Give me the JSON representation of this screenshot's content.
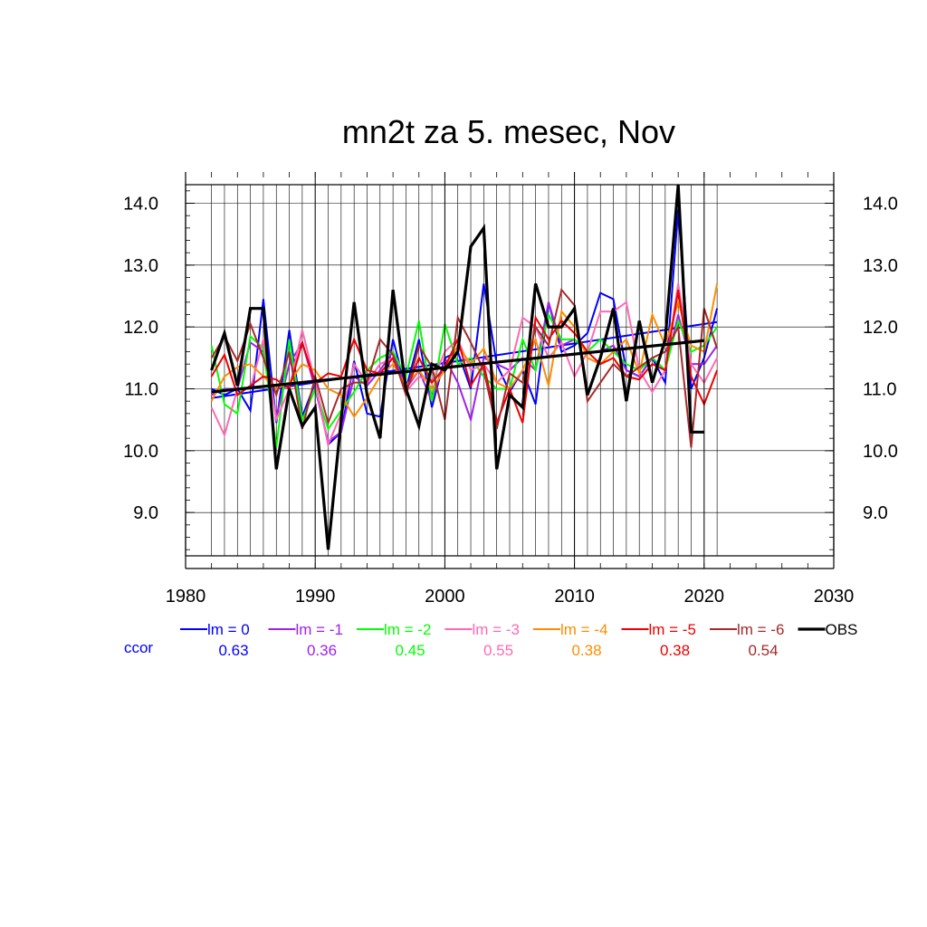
{
  "chart_data": {
    "type": "line",
    "title": "mn2t za 5. mesec, Nov",
    "xlim": [
      1980,
      2030
    ],
    "ylim": [
      8.3,
      14.3
    ],
    "x_ticks": [
      1980,
      1990,
      2000,
      2010,
      2020,
      2030
    ],
    "x_tick_labels": [
      "1980",
      "1990",
      "2000",
      "2010",
      "2020",
      "2030"
    ],
    "y_ticks": [
      9,
      10,
      11,
      12,
      13,
      14
    ],
    "y_tick_labels": [
      "9.0",
      "10.0",
      "11.0",
      "12.0",
      "13.0",
      "14.0"
    ],
    "grid": true,
    "ccor_label": "ccor",
    "x": [
      1982,
      1983,
      1984,
      1985,
      1986,
      1987,
      1988,
      1989,
      1990,
      1991,
      1992,
      1993,
      1994,
      1995,
      1996,
      1997,
      1998,
      1999,
      2000,
      2001,
      2002,
      2003,
      2004,
      2005,
      2006,
      2007,
      2008,
      2009,
      2010,
      2011,
      2012,
      2013,
      2014,
      2015,
      2016,
      2017,
      2018,
      2019,
      2020,
      2021
    ],
    "series": [
      {
        "name": "lm = 0",
        "color": "#0000ff",
        "width": 2,
        "ccor": "0.63",
        "values": [
          11.0,
          10.9,
          11.0,
          10.65,
          12.45,
          10.45,
          11.95,
          10.55,
          11.1,
          10.1,
          10.3,
          11.45,
          10.6,
          10.55,
          11.8,
          11.0,
          11.8,
          10.7,
          11.5,
          11.6,
          11.0,
          12.7,
          11.4,
          10.95,
          11.3,
          10.75,
          12.4,
          11.6,
          11.7,
          11.9,
          12.55,
          12.45,
          11.3,
          11.2,
          11.5,
          11.1,
          13.9,
          11.0,
          11.5,
          12.3
        ],
        "trend": [
          10.85,
          12.08
        ]
      },
      {
        "name": "lm = -1",
        "color": "#a020f0",
        "width": 2,
        "ccor": "0.36",
        "values": [
          10.9,
          11.0,
          11.0,
          11.75,
          11.6,
          10.55,
          11.4,
          11.75,
          11.0,
          10.15,
          10.3,
          11.2,
          11.05,
          11.3,
          11.6,
          11.0,
          11.3,
          10.8,
          11.5,
          11.1,
          10.5,
          11.5,
          11.4,
          11.3,
          11.5,
          11.3,
          12.4,
          11.7,
          11.8,
          11.6,
          11.6,
          11.7,
          11.3,
          11.2,
          11.5,
          11.3,
          12.2,
          11.4,
          11.4,
          11.7
        ]
      },
      {
        "name": "lm = -2",
        "color": "#00ff00",
        "width": 2,
        "ccor": "0.45",
        "values": [
          11.7,
          10.75,
          10.6,
          11.85,
          11.65,
          10.05,
          11.8,
          10.5,
          11.0,
          10.35,
          10.65,
          10.95,
          11.3,
          11.5,
          11.6,
          11.2,
          12.1,
          10.8,
          12.05,
          11.4,
          11.5,
          11.2,
          11.0,
          11.0,
          11.8,
          11.3,
          12.2,
          11.8,
          11.8,
          11.6,
          11.8,
          11.6,
          11.4,
          11.3,
          11.5,
          11.3,
          12.1,
          11.6,
          11.7,
          12.0
        ]
      },
      {
        "name": "lm = -3",
        "color": "#ff69b4",
        "width": 2,
        "ccor": "0.55",
        "values": [
          10.7,
          10.25,
          11.0,
          11.0,
          11.8,
          10.5,
          11.0,
          11.95,
          11.1,
          10.1,
          10.6,
          11.4,
          11.1,
          11.4,
          11.5,
          10.95,
          11.2,
          11.1,
          11.6,
          11.8,
          11.3,
          11.4,
          11.1,
          11.3,
          12.15,
          12.0,
          11.5,
          11.75,
          11.2,
          11.6,
          12.25,
          12.25,
          12.4,
          11.3,
          10.95,
          11.3,
          12.7,
          11.4,
          11.1,
          11.5
        ]
      },
      {
        "name": "lm = -4",
        "color": "#ff8c00",
        "width": 2,
        "ccor": "0.38",
        "values": [
          10.8,
          11.2,
          11.35,
          11.4,
          11.2,
          11.0,
          11.1,
          11.4,
          11.3,
          11.0,
          10.9,
          10.55,
          10.85,
          11.2,
          11.4,
          11.05,
          11.3,
          11.0,
          11.3,
          11.7,
          11.4,
          11.65,
          11.1,
          11.0,
          11.3,
          11.8,
          11.05,
          12.25,
          12.0,
          11.5,
          11.4,
          11.6,
          11.8,
          11.25,
          12.2,
          11.7,
          12.4,
          11.7,
          11.6,
          12.7
        ]
      },
      {
        "name": "lm = -5",
        "color": "#ee0000",
        "width": 2,
        "ccor": "0.38",
        "values": [
          11.2,
          11.55,
          10.9,
          11.05,
          11.2,
          11.15,
          11.0,
          11.75,
          11.1,
          11.25,
          11.2,
          11.8,
          11.3,
          11.25,
          11.5,
          10.95,
          11.5,
          11.1,
          11.35,
          11.8,
          11.05,
          11.4,
          10.45,
          11.0,
          10.45,
          12.15,
          11.8,
          12.1,
          11.9,
          11.6,
          11.4,
          11.5,
          11.2,
          11.15,
          11.4,
          11.3,
          12.6,
          11.2,
          10.75,
          11.3
        ]
      },
      {
        "name": "lm = -6",
        "color": "#a52a2a",
        "width": 2,
        "ccor": "0.54",
        "values": [
          11.5,
          11.85,
          11.45,
          12.05,
          11.5,
          10.9,
          11.6,
          10.35,
          11.2,
          10.45,
          11.0,
          11.1,
          11.1,
          11.8,
          11.55,
          10.9,
          11.7,
          11.35,
          10.5,
          12.15,
          11.75,
          11.3,
          10.35,
          11.25,
          11.1,
          12.0,
          11.7,
          12.6,
          12.35,
          10.8,
          11.1,
          11.4,
          11.2,
          11.35,
          11.5,
          11.6,
          12.0,
          10.05,
          12.3,
          11.65
        ]
      },
      {
        "name": "OBS",
        "color": "#000000",
        "width": 3.2,
        "ccor": "",
        "values": [
          11.3,
          11.9,
          11.05,
          12.3,
          12.3,
          9.7,
          11.0,
          10.4,
          10.7,
          8.4,
          10.5,
          12.4,
          10.9,
          10.2,
          12.6,
          11.0,
          10.4,
          11.4,
          11.3,
          11.6,
          13.3,
          13.6,
          9.7,
          10.9,
          10.7,
          12.7,
          12.0,
          12.0,
          12.3,
          10.9,
          11.5,
          12.3,
          10.8,
          12.1,
          11.1,
          11.8,
          14.3,
          10.3,
          10.3,
          null
        ],
        "trend": [
          10.95,
          11.78
        ]
      }
    ]
  }
}
